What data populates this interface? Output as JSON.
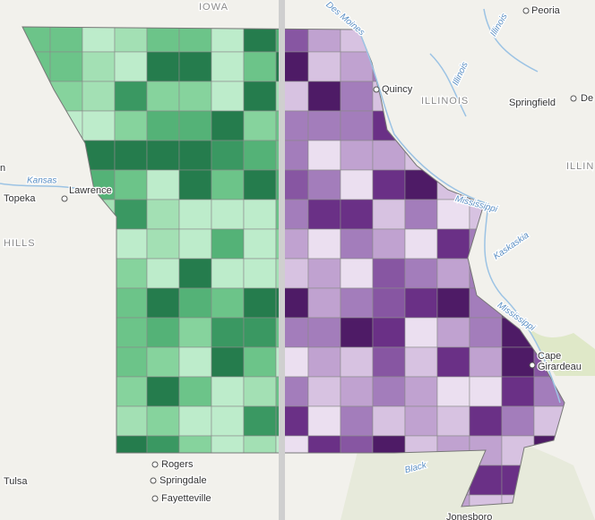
{
  "labels": [
    "IOWA",
    "Peoria",
    "Quincy",
    "ILLINOIS",
    "Springfield",
    "De",
    "ILLIN",
    "n",
    "Kansas",
    "Topeka",
    "Lawrence",
    "HILLS",
    "Mississippi",
    "Kaskaskia",
    "Mississippi",
    "Cape",
    "Girardeau",
    "Black",
    "Rogers",
    "Springdale",
    "Fayetteville",
    "Tulsa",
    "Jonesboro",
    "Des Moines",
    "Illinois",
    "Illinois"
  ]
}
